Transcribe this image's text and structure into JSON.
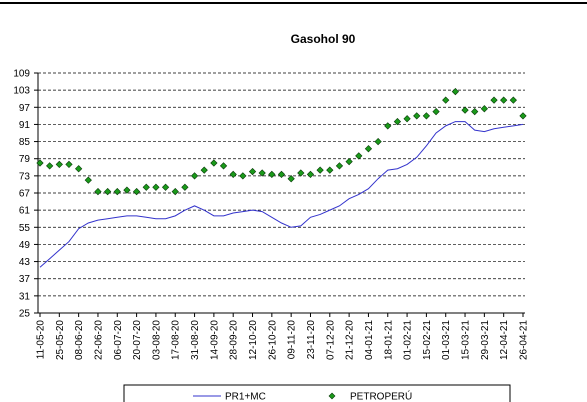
{
  "chart_data": {
    "type": "line",
    "title": "Gasohol 90",
    "categories": [
      "11-05-20",
      null,
      "25-05-20",
      null,
      "08-06-20",
      null,
      "22-06-20",
      null,
      "06-07-20",
      null,
      "20-07-20",
      null,
      "03-08-20",
      null,
      "17-08-20",
      null,
      "31-08-20",
      null,
      "14-09-20",
      null,
      "28-09-20",
      null,
      "12-10-20",
      null,
      "26-10-20",
      null,
      "09-11-20",
      null,
      "23-11-20",
      null,
      "07-12-20",
      null,
      "21-12-20",
      null,
      "04-01-21",
      null,
      "18-01-21",
      null,
      "01-02-21",
      null,
      "15-02-21",
      null,
      "01-03-21",
      null,
      "15-03-21",
      null,
      "29-03-21",
      null,
      "12-04-21",
      null,
      "26-04-21"
    ],
    "series": [
      {
        "name": "PR1+MC",
        "color": "#3333cc",
        "style": "line",
        "values": [
          41,
          44,
          47,
          50,
          54.5,
          56.5,
          57.5,
          58,
          58.5,
          59,
          59,
          58.5,
          58,
          58,
          59,
          61,
          62.5,
          61,
          59,
          59,
          60,
          60.5,
          61,
          60.5,
          58.5,
          56.5,
          55,
          55.5,
          58.5,
          59.5,
          61,
          62.5,
          65,
          66.5,
          68.5,
          72,
          75,
          75.5,
          77,
          79.5,
          83.5,
          88,
          90.5,
          92,
          92,
          89,
          88.5,
          89.5,
          90,
          90.5,
          91
        ]
      },
      {
        "name": "PETROPERÚ",
        "color": "#1a9a1a",
        "style": "marker",
        "values": [
          77.5,
          76.5,
          77,
          77,
          75.5,
          71.5,
          67.5,
          67.5,
          67.5,
          68,
          67.5,
          69,
          69,
          69,
          67.5,
          69,
          73,
          75,
          77.5,
          76.5,
          73.5,
          73,
          74.5,
          74,
          73.5,
          73.5,
          72,
          74,
          73.5,
          75,
          75,
          76.5,
          78,
          80,
          82.5,
          85,
          90.5,
          92,
          93,
          94,
          94,
          95.5,
          99.5,
          102.5,
          96,
          95.5,
          96.5,
          99.5,
          99.5,
          99.5,
          94
        ]
      }
    ],
    "ylim": [
      25,
      109
    ],
    "yticks": [
      25,
      31,
      37,
      43,
      49,
      55,
      61,
      67,
      73,
      79,
      85,
      91,
      97,
      103,
      109
    ],
    "grid": true,
    "legend": "bottom"
  }
}
